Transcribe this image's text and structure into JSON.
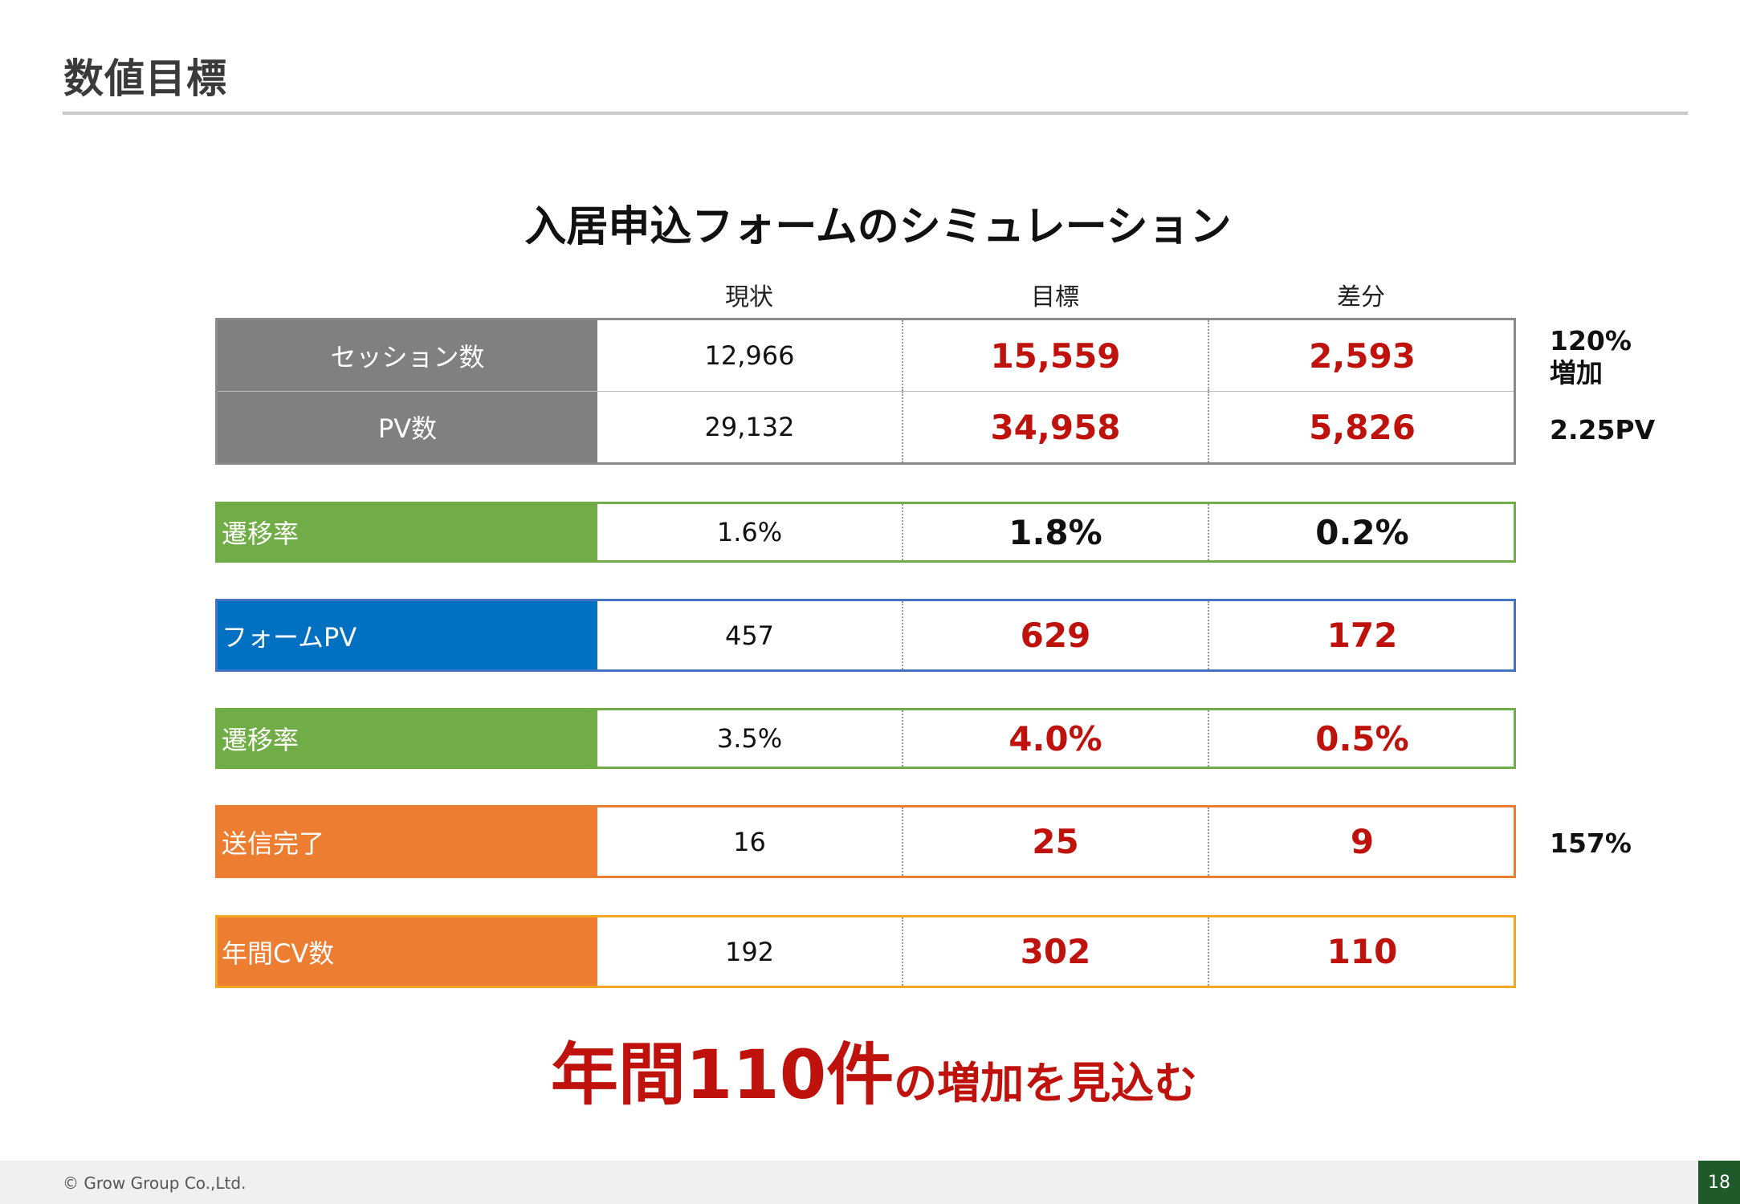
{
  "page_title": "数値目標",
  "sim_title": "入居申込フォームのシミュレーション",
  "columns": [
    "現状",
    "目標",
    "差分"
  ],
  "groups": [
    {
      "color": "#808080",
      "rows": [
        {
          "label": "セッション数",
          "current": "12,966",
          "target": "15,559",
          "diff": "2,593"
        },
        {
          "label": "PV数",
          "current": "29,132",
          "target": "34,958",
          "diff": "5,826"
        }
      ]
    },
    {
      "color": "#70ad47",
      "rows": [
        {
          "label": "遷移率",
          "current": "1.6%",
          "target": "1.8%",
          "diff": "0.2%"
        }
      ]
    },
    {
      "color": "#0070c0",
      "border": "#4472c4",
      "rows": [
        {
          "label": "フォームPV",
          "current": "457",
          "target": "629",
          "diff": "172"
        }
      ]
    },
    {
      "color": "#70ad47",
      "rows": [
        {
          "label": "遷移率",
          "current": "3.5%",
          "target": "4.0%",
          "diff": "0.5%"
        }
      ]
    },
    {
      "color": "#ed7d31",
      "rows": [
        {
          "label": "送信完了",
          "current": "16",
          "target": "25",
          "diff": "9"
        }
      ]
    },
    {
      "color": "#ed7d31",
      "border": "#f5a623",
      "rows": [
        {
          "label": "年間CV数",
          "current": "192",
          "target": "302",
          "diff": "110"
        }
      ]
    }
  ],
  "side_notes": {
    "sessions_line1": "120%",
    "sessions_line2": "増加",
    "pv": "2.25PV",
    "submit": "157%"
  },
  "conclusion": {
    "large": "年間110件",
    "small": "の増加を見込む"
  },
  "footer": {
    "copyright": "© Grow Group Co.,Ltd.",
    "page_number": "18"
  }
}
